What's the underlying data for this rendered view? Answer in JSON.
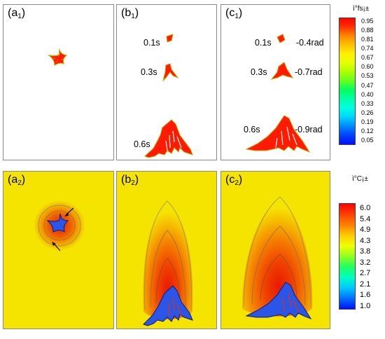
{
  "panels": {
    "a1": {
      "letter": "a",
      "sub": "1"
    },
    "b1": {
      "letter": "b",
      "sub": "1"
    },
    "c1": {
      "letter": "c",
      "sub": "1"
    },
    "a2": {
      "letter": "a",
      "sub": "2"
    },
    "b2": {
      "letter": "b",
      "sub": "2"
    },
    "c2": {
      "letter": "c",
      "sub": "2"
    }
  },
  "annotations": {
    "b1": [
      "0.1s",
      "0.3s",
      "0.6s"
    ],
    "c1_times": [
      "0.1s",
      "0.3s",
      "0.6s"
    ],
    "c1_angles": [
      "-0.4rad",
      "-0.7rad",
      "-0.9rad"
    ]
  },
  "colorbar_top": {
    "title": "ì°fs¡±",
    "ticks": [
      "0.95",
      "0.88",
      "0.81",
      "0.74",
      "0.67",
      "0.60",
      "0.53",
      "0.47",
      "0.40",
      "0.33",
      "0.26",
      "0.19",
      "0.12",
      "0.05"
    ]
  },
  "colorbar_bottom": {
    "title": "ì°C¡±",
    "ticks": [
      "6.0",
      "5.4",
      "4.9",
      "4.3",
      "3.8",
      "3.2",
      "2.7",
      "2.1",
      "1.6",
      "1.0"
    ]
  },
  "colors": {
    "solid": "#ff1a00",
    "solid_edge": "#c8a000",
    "background_yellow": "#f5e400",
    "dendrite_blue": "#2a55e6",
    "concentration_red": "#e81a00"
  }
}
